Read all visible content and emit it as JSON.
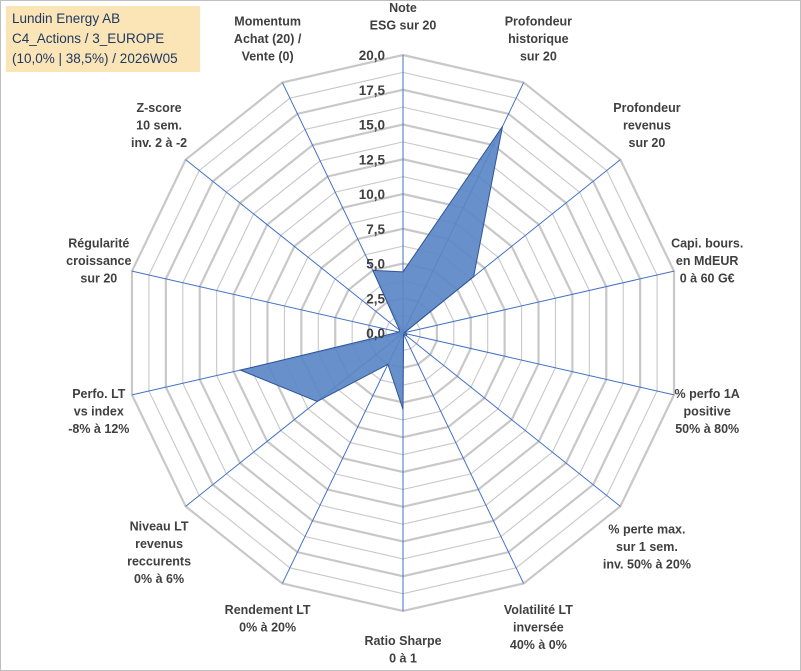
{
  "title_box": {
    "line1": "Lundin Energy AB",
    "line2": "C4_Actions / 3_EUROPE",
    "line3": "(10,0% | 38,5%) / 2026W05"
  },
  "colors": {
    "grid": "#c8c8c8",
    "spoke": "#4472c4",
    "fill": "#5b87c5",
    "stroke": "#2f5597",
    "title_bg": "#fbe5b6",
    "title_text": "#1f3864",
    "label_text": "#404040"
  },
  "chart_data": {
    "type": "radar",
    "range": [
      0,
      20
    ],
    "ticks": [
      "0,0",
      "2,5",
      "5,0",
      "7,5",
      "10,0",
      "12,5",
      "15,0",
      "17,5",
      "20,0"
    ],
    "grid_rings": 16,
    "axes": [
      {
        "lines": [
          "Note",
          "ESG sur 20"
        ]
      },
      {
        "lines": [
          "Profondeur",
          "historique",
          "sur 20"
        ]
      },
      {
        "lines": [
          "Profondeur",
          "revenus",
          "sur 20"
        ]
      },
      {
        "lines": [
          "Capi. bours.",
          "en MdEUR",
          "0 à 60 G€"
        ]
      },
      {
        "lines": [
          "% perfo 1A",
          "positive",
          "50% à 80%"
        ]
      },
      {
        "lines": [
          "% perte max.",
          "sur 1 sem.",
          "inv. 50% à 20%"
        ]
      },
      {
        "lines": [
          "Volatilité LT",
          "inversée",
          "40% à 0%"
        ]
      },
      {
        "lines": [
          "Ratio Sharpe",
          "0 à 1"
        ]
      },
      {
        "lines": [
          "Rendement LT",
          "0% à 20%"
        ]
      },
      {
        "lines": [
          "Niveau LT",
          "revenus",
          "reccurents",
          "0% à 6%"
        ]
      },
      {
        "lines": [
          "Perfo. LT",
          "vs index",
          "-8% à 12%"
        ]
      },
      {
        "lines": [
          "Régularité",
          "croissance",
          "sur 20"
        ]
      },
      {
        "lines": [
          "Z-score",
          "10 sem.",
          "inv. 2 à -2"
        ]
      },
      {
        "lines": [
          "Momentum",
          "Achat (20) /",
          "Vente (0)"
        ]
      }
    ],
    "series": [
      {
        "name": "Lundin Energy AB",
        "values": [
          4.4,
          16.5,
          6.5,
          0.1,
          0.3,
          0.3,
          0.1,
          5.5,
          2.5,
          7.9,
          12.0,
          0.3,
          0.3,
          5.0
        ]
      }
    ]
  }
}
